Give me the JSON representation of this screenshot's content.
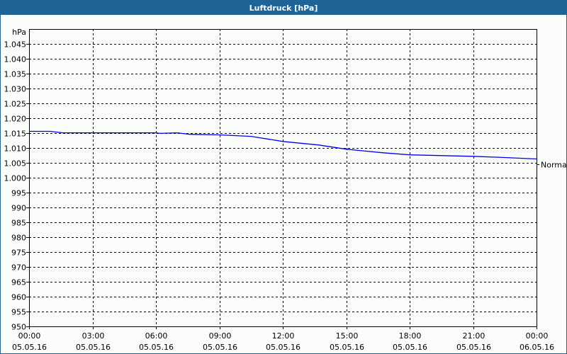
{
  "window": {
    "title": "Luftdruck [hPa]",
    "title_bar_color": "#1e6496"
  },
  "chart_data": {
    "type": "line",
    "title": "Luftdruck [hPa]",
    "ylabel": "hPa",
    "xlabel": "",
    "ylim": [
      950,
      1050
    ],
    "yticks": [
      950,
      955,
      960,
      965,
      970,
      975,
      980,
      985,
      990,
      995,
      1000,
      1005,
      1010,
      1015,
      1020,
      1025,
      1030,
      1035,
      1040,
      1045
    ],
    "ytick_labels": [
      "950",
      "955",
      "960",
      "965",
      "970",
      "975",
      "980",
      "985",
      "990",
      "995",
      "1.000",
      "1.005",
      "1.010",
      "1.015",
      "1.020",
      "1.025",
      "1.030",
      "1.035",
      "1.040",
      "1.045"
    ],
    "xlim_hours": [
      0,
      24
    ],
    "xticks": [
      {
        "time": "00:00",
        "date": "05.05.16"
      },
      {
        "time": "03:00",
        "date": "05.05.16"
      },
      {
        "time": "06:00",
        "date": "05.05.16"
      },
      {
        "time": "09:00",
        "date": "05.05.16"
      },
      {
        "time": "12:00",
        "date": "05.05.16"
      },
      {
        "time": "15:00",
        "date": "05.05.16"
      },
      {
        "time": "18:00",
        "date": "05.05.16"
      },
      {
        "time": "21:00",
        "date": "05.05.16"
      },
      {
        "time": "00:00",
        "date": "06.05.16"
      }
    ],
    "grid": true,
    "series": [
      {
        "color": "#0000ee",
        "x_hours": [
          0,
          1,
          1.6,
          3,
          6,
          6.2,
          7,
          7.6,
          9,
          10.5,
          12,
          13.7,
          15,
          16.7,
          18,
          21,
          22.4,
          24
        ],
        "values": [
          1015.6,
          1015.6,
          1015.1,
          1015.1,
          1015.1,
          1014.9,
          1015.1,
          1014.6,
          1014.4,
          1013.9,
          1012.2,
          1011.0,
          1009.6,
          1008.4,
          1007.7,
          1007.2,
          1006.8,
          1006.3
        ]
      }
    ],
    "annotations": [
      {
        "label": "Normal",
        "value": 1004.5
      }
    ]
  }
}
